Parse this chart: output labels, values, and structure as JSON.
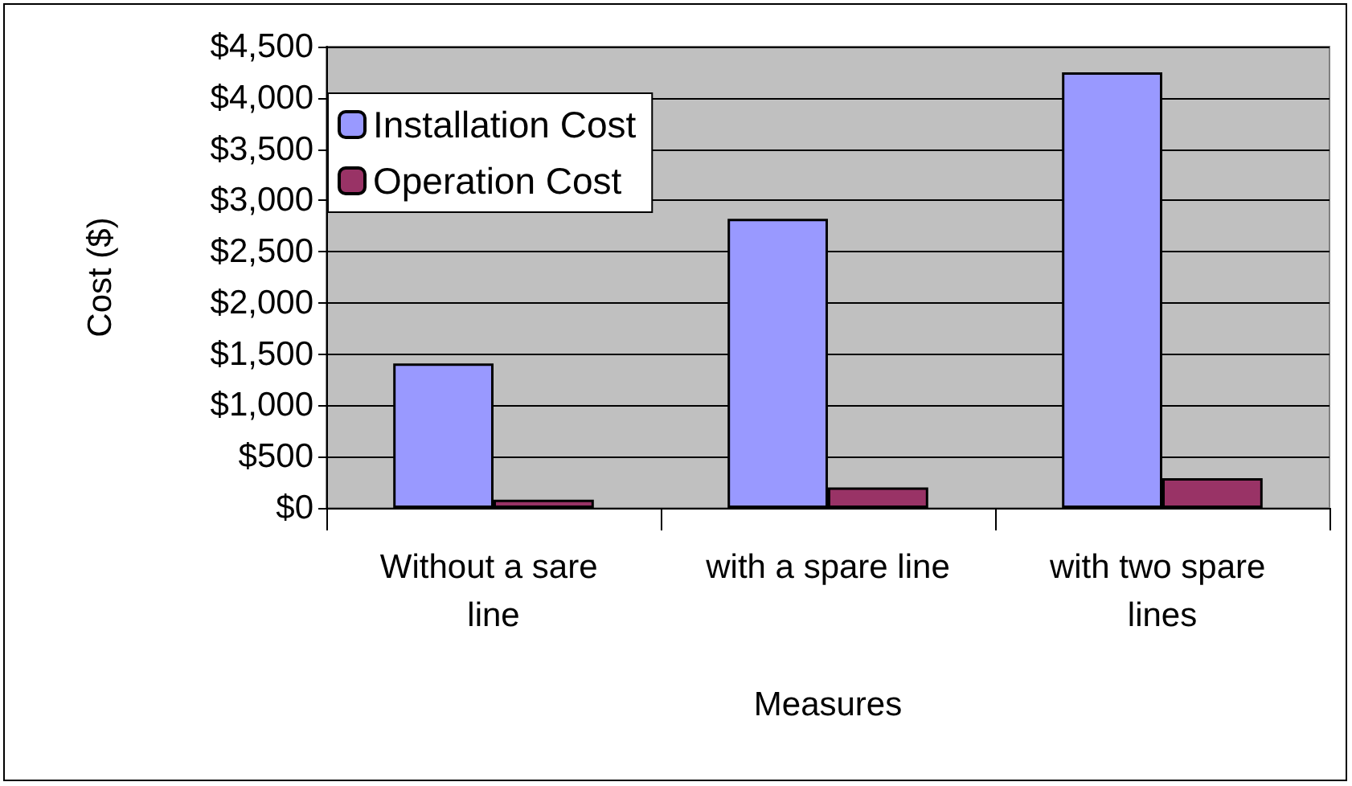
{
  "chart_data": {
    "type": "bar",
    "xlabel": "Measures",
    "ylabel": "Cost ($)",
    "categories": [
      "Without a sare line",
      "with a spare line",
      "with two spare lines"
    ],
    "series": [
      {
        "name": "Installation Cost",
        "color": "#9999ff",
        "values": [
          1410,
          2820,
          4250
        ]
      },
      {
        "name": "Operation Cost",
        "color": "#993366",
        "values": [
          80,
          200,
          290
        ]
      }
    ],
    "ylim": [
      0,
      4500
    ],
    "yticks": [
      {
        "value": 0,
        "label": "$0"
      },
      {
        "value": 500,
        "label": "$500"
      },
      {
        "value": 1000,
        "label": "$1,000"
      },
      {
        "value": 1500,
        "label": "$1,500"
      },
      {
        "value": 2000,
        "label": "$2,000"
      },
      {
        "value": 2500,
        "label": "$2,500"
      },
      {
        "value": 3000,
        "label": "$3,000"
      },
      {
        "value": 3500,
        "label": "$3,500"
      },
      {
        "value": 4000,
        "label": "$4,000"
      },
      {
        "value": 4500,
        "label": "$4,500"
      }
    ],
    "grid": "y",
    "legend": "top left"
  }
}
